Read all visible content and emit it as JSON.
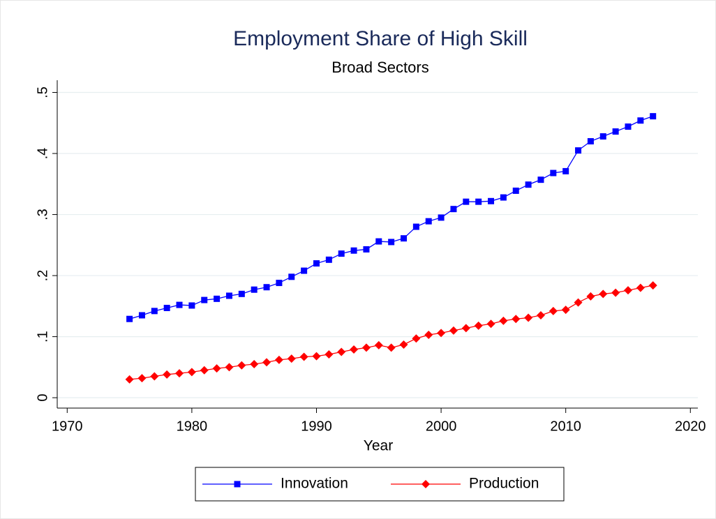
{
  "chart_data": {
    "type": "line",
    "title": "Employment Share of High Skill",
    "subtitle": "Broad Sectors",
    "x_label": "Year",
    "x": [
      1975,
      1976,
      1977,
      1978,
      1979,
      1980,
      1981,
      1982,
      1983,
      1984,
      1985,
      1986,
      1987,
      1988,
      1989,
      1990,
      1991,
      1992,
      1993,
      1994,
      1995,
      1996,
      1997,
      1998,
      1999,
      2000,
      2001,
      2002,
      2003,
      2004,
      2005,
      2006,
      2007,
      2008,
      2009,
      2010,
      2011,
      2012,
      2013,
      2014,
      2015,
      2016,
      2017
    ],
    "series": [
      {
        "name": "Innovation",
        "color": "#0000ff",
        "marker": "square",
        "values": [
          0.129,
          0.135,
          0.142,
          0.147,
          0.152,
          0.151,
          0.16,
          0.162,
          0.167,
          0.17,
          0.177,
          0.181,
          0.188,
          0.198,
          0.208,
          0.22,
          0.226,
          0.236,
          0.241,
          0.243,
          0.256,
          0.255,
          0.261,
          0.28,
          0.289,
          0.295,
          0.309,
          0.321,
          0.321,
          0.322,
          0.328,
          0.339,
          0.349,
          0.357,
          0.368,
          0.371,
          0.405,
          0.42,
          0.428,
          0.436,
          0.444,
          0.454,
          0.461
        ]
      },
      {
        "name": "Production",
        "color": "#ff0000",
        "marker": "diamond",
        "values": [
          0.03,
          0.032,
          0.035,
          0.038,
          0.04,
          0.042,
          0.045,
          0.048,
          0.05,
          0.053,
          0.055,
          0.058,
          0.062,
          0.064,
          0.067,
          0.068,
          0.071,
          0.075,
          0.079,
          0.082,
          0.086,
          0.082,
          0.087,
          0.097,
          0.103,
          0.106,
          0.11,
          0.114,
          0.118,
          0.121,
          0.126,
          0.129,
          0.131,
          0.135,
          0.142,
          0.144,
          0.156,
          0.166,
          0.17,
          0.172,
          0.176,
          0.18,
          0.184
        ]
      }
    ],
    "xlim": [
      1969.2,
      2020.6
    ],
    "xticks": [
      1970,
      1980,
      1990,
      2000,
      2010,
      2020
    ],
    "ylim": [
      -0.017,
      0.52
    ],
    "yticks": [
      0,
      {
        "value": 0.1,
        "label": ".1"
      },
      {
        "value": 0.2,
        "label": ".2"
      },
      {
        "value": 0.3,
        "label": ".3"
      },
      {
        "value": 0.4,
        "label": ".4"
      },
      {
        "value": 0.5,
        "label": ".5"
      }
    ],
    "grid": true,
    "legend": "bottom"
  }
}
